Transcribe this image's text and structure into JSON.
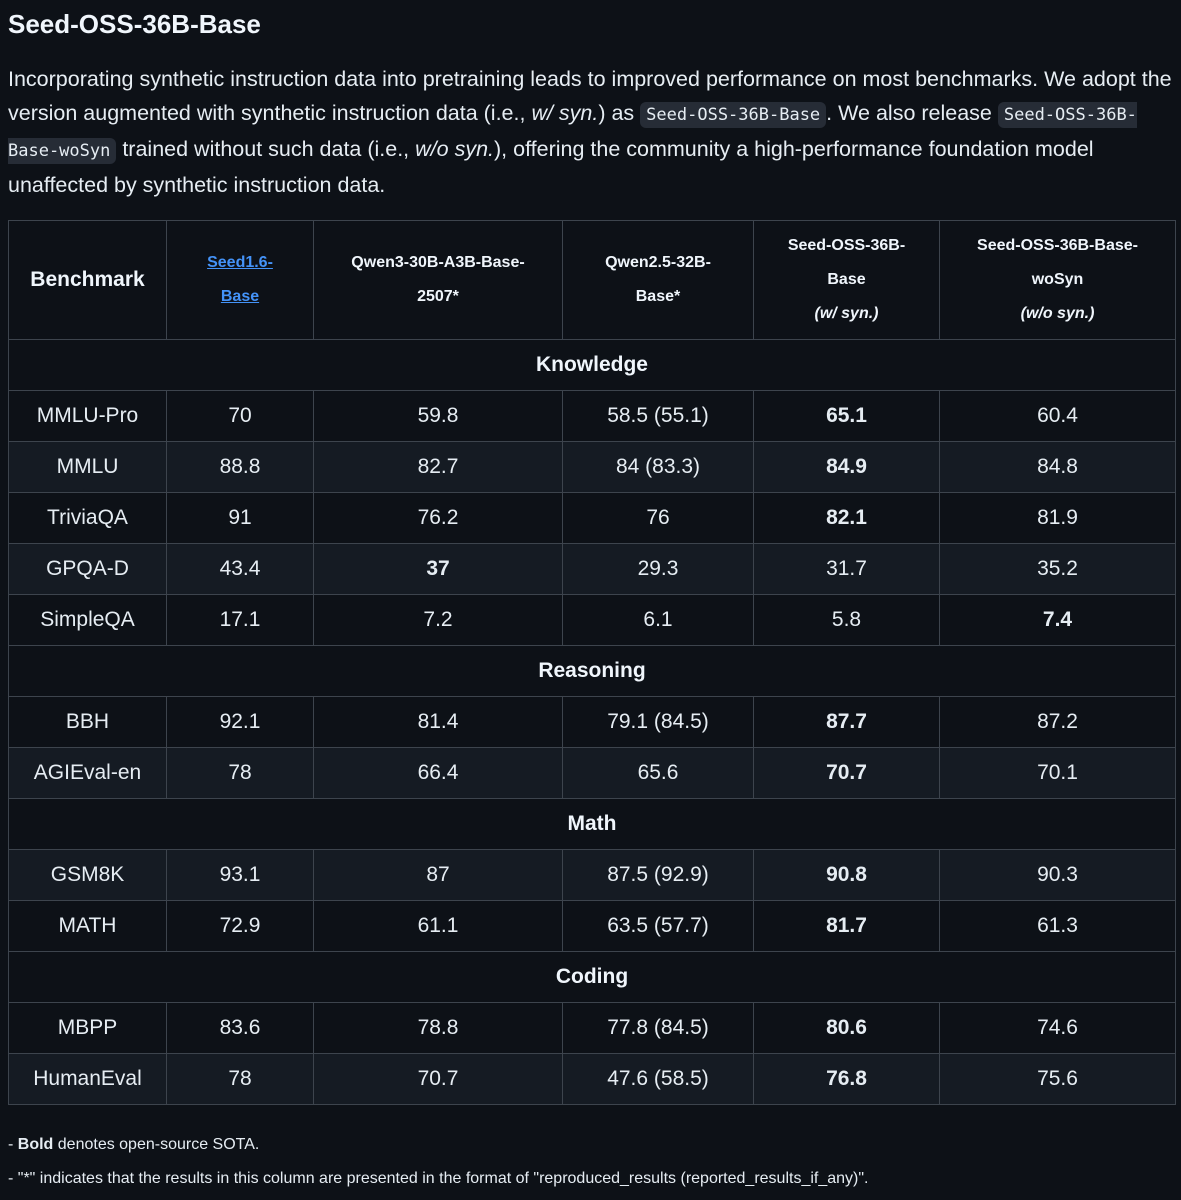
{
  "title": "Seed-OSS-36B-Base",
  "intro": {
    "p1": "Incorporating synthetic instruction data into pretraining leads to improved performance on most benchmarks. We adopt the version augmented with synthetic instruction data (i.e., ",
    "p1_em": "w/ syn.",
    "p2": ") as ",
    "code1": "Seed-OSS-36B-Base",
    "p3": ". We also release ",
    "code2": "Seed-OSS-36B-Base-woSyn",
    "p4": " trained without such data (i.e., ",
    "p4_em": "w/o syn.",
    "p5": "), offering the community a high-performance foundation model unaffected by synthetic instruction data."
  },
  "table": {
    "headers": {
      "benchmark": "Benchmark",
      "seed16_l1": "Seed1.6-",
      "seed16_l2": "Base",
      "qwen3_l1": "Qwen3-30B-A3B-Base-",
      "qwen3_l2": "2507*",
      "qwen25_l1": "Qwen2.5-32B-",
      "qwen25_l2": "Base*",
      "oss_l1": "Seed-OSS-36B-",
      "oss_l2": "Base",
      "oss_l3": "(w/ syn.)",
      "woSyn_l1": "Seed-OSS-36B-Base-",
      "woSyn_l2": "woSyn",
      "woSyn_l3": "(w/o syn.)"
    },
    "sections": {
      "knowledge": "Knowledge",
      "reasoning": "Reasoning",
      "math": "Math",
      "coding": "Coding"
    },
    "rows": {
      "mmlu_pro": [
        "MMLU-Pro",
        "70",
        "59.8",
        "58.5 (55.1)",
        "65.1",
        "60.4"
      ],
      "mmlu": [
        "MMLU",
        "88.8",
        "82.7",
        "84 (83.3)",
        "84.9",
        "84.8"
      ],
      "triviaqa": [
        "TriviaQA",
        "91",
        "76.2",
        "76",
        "82.1",
        "81.9"
      ],
      "gpqa": [
        "GPQA-D",
        "43.4",
        "37",
        "29.3",
        "31.7",
        "35.2"
      ],
      "simpleqa": [
        "SimpleQA",
        "17.1",
        "7.2",
        "6.1",
        "5.8",
        "7.4"
      ],
      "bbh": [
        "BBH",
        "92.1",
        "81.4",
        "79.1 (84.5)",
        "87.7",
        "87.2"
      ],
      "agieval": [
        "AGIEval-en",
        "78",
        "66.4",
        "65.6",
        "70.7",
        "70.1"
      ],
      "gsm8k": [
        "GSM8K",
        "93.1",
        "87",
        "87.5 (92.9)",
        "90.8",
        "90.3"
      ],
      "math": [
        "MATH",
        "72.9",
        "61.1",
        "63.5 (57.7)",
        "81.7",
        "61.3"
      ],
      "mbpp": [
        "MBPP",
        "83.6",
        "78.8",
        "77.8 (84.5)",
        "80.6",
        "74.6"
      ],
      "humaneval": [
        "HumanEval",
        "78",
        "70.7",
        "47.6 (58.5)",
        "76.8",
        "75.6"
      ]
    }
  },
  "notes": {
    "n1_prefix": "- ",
    "n1_bold": "Bold",
    "n1_rest": " denotes open-source SOTA.",
    "n2": "- \"*\" indicates that the results in this column are presented in the format of \"reproduced_results (reported_results_if_any)\"."
  }
}
